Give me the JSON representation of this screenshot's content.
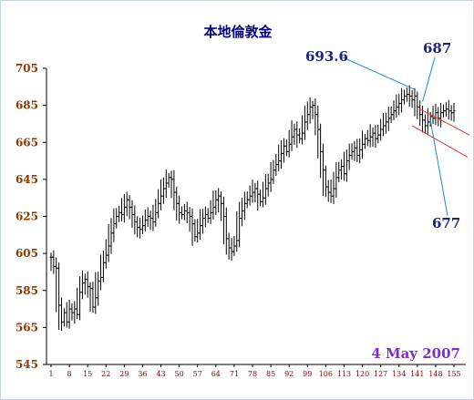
{
  "chart_data": {
    "type": "ohlc",
    "title": "本地倫敦金",
    "date_label": "4 May 2007",
    "ylim": [
      545,
      705
    ],
    "xlim": [
      1,
      155
    ],
    "grid": false,
    "y_ticks": [
      "705",
      "685",
      "665",
      "645",
      "625",
      "605",
      "585",
      "565",
      "545"
    ],
    "x_ticks": [
      "1",
      "8",
      "15",
      "22",
      "29",
      "36",
      "43",
      "50",
      "57",
      "64",
      "71",
      "78",
      "85",
      "92",
      "99",
      "106",
      "113",
      "120",
      "127",
      "134",
      "141",
      "148",
      "155"
    ],
    "bar_color": "#000000",
    "annotation_color": "#1e88e5",
    "channel_color": "#e53935",
    "series_values": [
      603,
      598,
      597,
      577,
      568,
      573,
      568,
      575,
      573,
      575,
      572,
      584,
      589,
      591,
      587,
      586,
      576,
      581,
      590,
      592,
      600,
      604,
      609,
      616,
      621,
      625,
      627,
      626,
      630,
      634,
      630,
      626,
      622,
      619,
      618,
      620,
      623,
      625,
      624,
      622,
      627,
      632,
      636,
      640,
      643,
      646,
      645,
      638,
      632,
      627,
      626,
      628,
      627,
      625,
      621,
      614,
      616,
      620,
      624,
      626,
      624,
      627,
      630,
      634,
      636,
      632,
      625,
      613,
      608,
      606,
      609,
      612,
      624,
      628,
      632,
      634,
      636,
      638,
      640,
      637,
      633,
      635,
      640,
      643,
      645,
      650,
      653,
      655,
      659,
      663,
      660,
      664,
      668,
      672,
      669,
      667,
      670,
      676,
      680,
      684,
      685,
      680,
      672,
      660,
      650,
      641,
      638,
      636,
      640,
      646,
      650,
      652,
      648,
      655,
      658,
      660,
      662,
      658,
      661,
      664,
      667,
      666,
      668,
      670,
      667,
      669,
      672,
      674,
      676,
      678,
      680,
      682,
      684,
      686,
      688,
      690,
      691,
      690,
      688,
      690,
      684,
      680,
      677,
      674,
      676,
      679,
      678,
      681,
      678,
      681,
      682,
      683,
      682,
      681,
      682
    ],
    "annotations": [
      {
        "text": "693.6",
        "target": [
          140,
          693.6
        ]
      },
      {
        "text": "687",
        "target": [
          143,
          687
        ]
      },
      {
        "text": "677",
        "target": [
          146,
          677
        ]
      }
    ]
  }
}
